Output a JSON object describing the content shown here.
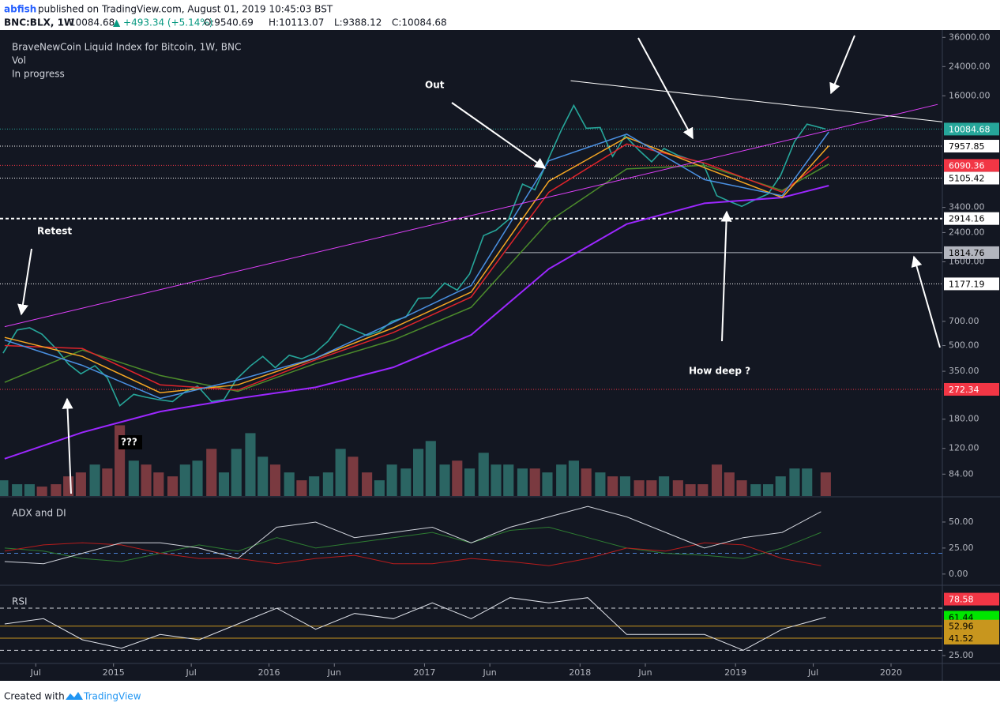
{
  "header": {
    "publisher": "abfish",
    "published": "published on TradingView.com, August 01, 2019 10:45:03 BST",
    "symbol": "BNC:BLX, 1W",
    "last": "10084.68",
    "change": "▲ +493.34 (+5.14%)",
    "ohlc": [
      "O:9540.69",
      "H:10113.07",
      "L:9388.12",
      "C:10084.68"
    ]
  },
  "annotations": [
    "Retest",
    "Out",
    "How deep ?",
    "???"
  ],
  "footer": {
    "text": "Created with",
    "brand": "TradingView"
  },
  "chart_data": [
    {
      "type": "line",
      "title": "BraveNewCoin Liquid Index for Bitcoin, 1W, BNC",
      "subtitles": [
        "Vol",
        "In progress"
      ],
      "log_scale": true,
      "xlim": [
        2014.27,
        2020.33
      ],
      "ylim": [
        62,
        39000
      ],
      "xticks": [
        {
          "value": 2014.5,
          "label": "Jul"
        },
        {
          "value": 2015,
          "label": "2015"
        },
        {
          "value": 2015.5,
          "label": "Jul"
        },
        {
          "value": 2016,
          "label": "2016"
        },
        {
          "value": 2016.42,
          "label": "Jun"
        },
        {
          "value": 2017,
          "label": "2017"
        },
        {
          "value": 2017.42,
          "label": "Jun"
        },
        {
          "value": 2018,
          "label": "2018"
        },
        {
          "value": 2018.42,
          "label": "Jun"
        },
        {
          "value": 2019,
          "label": "2019"
        },
        {
          "value": 2019.5,
          "label": "Jul"
        },
        {
          "value": 2020,
          "label": "2020"
        }
      ],
      "yticks": [
        {
          "value": 36000,
          "label": "36000.00"
        },
        {
          "value": 24000,
          "label": "24000.00"
        },
        {
          "value": 16000,
          "label": "16000.00"
        },
        {
          "value": 3400,
          "label": "3400.00"
        },
        {
          "value": 2400,
          "label": "2400.00"
        },
        {
          "value": 1600,
          "label": "1600.00"
        },
        {
          "value": 700,
          "label": "700.00"
        },
        {
          "value": 500,
          "label": "500.00"
        },
        {
          "value": 350,
          "label": "350.00"
        },
        {
          "value": 180,
          "label": "180.00"
        },
        {
          "value": 120,
          "label": "120.00"
        },
        {
          "value": 84,
          "label": "84.00"
        }
      ],
      "x": [
        2014.29,
        2014.38,
        2014.46,
        2014.54,
        2014.63,
        2014.71,
        2014.79,
        2014.88,
        2014.96,
        2015.04,
        2015.13,
        2015.21,
        2015.29,
        2015.38,
        2015.46,
        2015.54,
        2015.63,
        2015.71,
        2015.79,
        2015.88,
        2015.96,
        2016.04,
        2016.13,
        2016.21,
        2016.29,
        2016.38,
        2016.46,
        2016.54,
        2016.63,
        2016.71,
        2016.79,
        2016.88,
        2016.96,
        2017.04,
        2017.13,
        2017.21,
        2017.29,
        2017.38,
        2017.46,
        2017.54,
        2017.63,
        2017.71,
        2017.79,
        2017.88,
        2017.96,
        2018.04,
        2018.13,
        2018.21,
        2018.29,
        2018.38,
        2018.46,
        2018.54,
        2018.63,
        2018.71,
        2018.79,
        2018.88,
        2018.96,
        2019.04,
        2019.13,
        2019.21,
        2019.29,
        2019.38,
        2019.46,
        2019.58
      ],
      "volume": [
        20,
        15,
        15,
        12,
        15,
        25,
        30,
        40,
        35,
        90,
        45,
        40,
        30,
        25,
        40,
        45,
        60,
        30,
        60,
        80,
        50,
        40,
        30,
        20,
        25,
        30,
        60,
        50,
        30,
        20,
        40,
        35,
        60,
        70,
        40,
        45,
        35,
        55,
        40,
        40,
        35,
        35,
        30,
        40,
        45,
        35,
        30,
        25,
        25,
        20,
        20,
        25,
        20,
        15,
        15,
        40,
        30,
        20,
        15,
        15,
        25,
        35,
        35,
        30
      ],
      "vlim": [
        0,
        130
      ],
      "volume_colors": {
        "up": "#2b6563",
        "down": "#7a3a40"
      },
      "series": [
        {
          "color": "#26a69a",
          "width": 1.6,
          "values": [
            450,
            620,
            640,
            585,
            480,
            387,
            338,
            378,
            320,
            217,
            254,
            244,
            236,
            230,
            263,
            285,
            230,
            236,
            313,
            377,
            430,
            368,
            437,
            416,
            448,
            531,
            673,
            624,
            575,
            609,
            700,
            742,
            963,
            970,
            1190,
            1080,
            1350,
            2300,
            2480,
            2870,
            4700,
            4340,
            6450,
            9950,
            14000,
            10200,
            10300,
            6900,
            9200,
            7500,
            6400,
            7700,
            7000,
            6600,
            6300,
            4000,
            3700,
            3450,
            3800,
            4100,
            5300,
            8500,
            10800,
            10084.68
          ]
        },
        {
          "color": "#9c27ff",
          "width": 2,
          "x": [
            2014.3,
            2014.8,
            2015.3,
            2015.8,
            2016.3,
            2016.8,
            2017.3,
            2017.8,
            2018.3,
            2018.8,
            2019.3,
            2019.6
          ],
          "values": [
            104,
            150,
            200,
            240,
            280,
            370,
            580,
            1450,
            2700,
            3600,
            3900,
            4600
          ]
        },
        {
          "color": "#4c8c2b",
          "width": 1.5,
          "x": [
            2014.3,
            2014.8,
            2015.3,
            2015.8,
            2016.3,
            2016.8,
            2017.3,
            2017.8,
            2018.3,
            2018.8,
            2019.3,
            2019.6
          ],
          "values": [
            300,
            470,
            330,
            265,
            390,
            540,
            850,
            2800,
            5800,
            6100,
            4300,
            6200
          ]
        },
        {
          "color": "#e0242b",
          "width": 1.5,
          "x": [
            2014.3,
            2014.8,
            2015.3,
            2015.8,
            2016.3,
            2016.8,
            2017.3,
            2017.8,
            2018.3,
            2018.8,
            2019.3,
            2019.6
          ],
          "values": [
            500,
            480,
            290,
            270,
            410,
            600,
            980,
            4200,
            8200,
            6300,
            4200,
            6900
          ]
        },
        {
          "color": "#f5a623",
          "width": 1.5,
          "x": [
            2014.3,
            2014.8,
            2015.3,
            2015.8,
            2016.3,
            2016.8,
            2017.3,
            2017.8,
            2018.3,
            2018.8,
            2019.3,
            2019.6
          ],
          "values": [
            560,
            430,
            260,
            290,
            420,
            640,
            1050,
            4900,
            9000,
            5900,
            3900,
            8000
          ]
        },
        {
          "color": "#4a90e2",
          "width": 1.5,
          "x": [
            2014.3,
            2014.8,
            2015.3,
            2015.8,
            2016.3,
            2016.8,
            2017.3,
            2017.8,
            2018.3,
            2018.8,
            2019.3,
            2019.6
          ],
          "values": [
            540,
            380,
            240,
            310,
            420,
            690,
            1150,
            6500,
            9400,
            5000,
            4000,
            9700
          ]
        },
        {
          "color": "#e040fb",
          "width": 1,
          "x": [
            2014.3,
            2020.3
          ],
          "values": [
            650,
            14200
          ]
        },
        {
          "color": "#ffffff",
          "width": 1,
          "x": [
            2017.94,
            2020.33
          ],
          "values": [
            19700,
            11140
          ]
        }
      ],
      "levels": [
        {
          "value": 10084.68,
          "color": "#26a69a",
          "text_color": "#ffffff",
          "style": "dotted"
        },
        {
          "value": 7957.85,
          "color": "#ffffff",
          "text_color": "#000000",
          "style": "dotted"
        },
        {
          "value": 6090.36,
          "color": "#f23645",
          "text_color": "#ffffff",
          "style": "dotted"
        },
        {
          "value": 5105.42,
          "color": "#ffffff",
          "text_color": "#000000",
          "style": "dotted"
        },
        {
          "value": 2914.16,
          "color": "#ffffff",
          "text_color": "#000000",
          "style": "dashed"
        },
        {
          "value": 1814.76,
          "color": "#b2b5be",
          "text_color": "#000000",
          "style": "solid",
          "from": 2017.52
        },
        {
          "value": 1177.19,
          "color": "#ffffff",
          "text_color": "#000000",
          "style": "dotted"
        },
        {
          "value": 272.34,
          "color": "#f23645",
          "text_color": "#ffffff",
          "style": "dotted"
        }
      ]
    },
    {
      "type": "line",
      "title": "ADX and DI",
      "xlim": [
        2014.27,
        2020.33
      ],
      "ylim": [
        -10,
        73.5
      ],
      "yticks": [
        {
          "value": 50,
          "label": "50.00"
        },
        {
          "value": 25,
          "label": "25.00"
        },
        {
          "value": 0,
          "label": "0.00"
        }
      ],
      "bands": [
        20
      ],
      "band_color": "#4a7fd0",
      "x": [
        2014.3,
        2014.55,
        2014.8,
        2015.05,
        2015.3,
        2015.55,
        2015.8,
        2016.05,
        2016.3,
        2016.55,
        2016.8,
        2017.05,
        2017.3,
        2017.55,
        2017.8,
        2018.05,
        2018.3,
        2018.55,
        2018.8,
        2019.05,
        2019.3,
        2019.55
      ],
      "series": [
        {
          "color": "#2e7d32",
          "width": 1,
          "values": [
            25,
            22,
            15,
            12,
            20,
            28,
            22,
            35,
            25,
            30,
            35,
            40,
            30,
            42,
            45,
            35,
            25,
            20,
            18,
            15,
            25,
            40
          ]
        },
        {
          "color": "#b71c1c",
          "width": 1,
          "values": [
            22,
            28,
            30,
            28,
            20,
            15,
            15,
            10,
            15,
            18,
            10,
            10,
            15,
            12,
            8,
            15,
            25,
            22,
            30,
            28,
            15,
            8
          ]
        },
        {
          "color": "#d1d4dc",
          "width": 1,
          "values": [
            12,
            10,
            20,
            30,
            30,
            25,
            15,
            45,
            50,
            35,
            40,
            45,
            30,
            45,
            55,
            65,
            55,
            40,
            25,
            35,
            40,
            60
          ]
        }
      ]
    },
    {
      "type": "line",
      "title": "RSI",
      "xlim": [
        2014.27,
        2020.33
      ],
      "ylim": [
        19,
        91
      ],
      "yticks": [
        {
          "value": 25,
          "label": "25.00"
        }
      ],
      "bands": [
        70,
        30
      ],
      "band_color": "#d1d4dc",
      "x": [
        2014.3,
        2014.55,
        2014.8,
        2015.05,
        2015.3,
        2015.55,
        2015.8,
        2016.05,
        2016.3,
        2016.55,
        2016.8,
        2017.05,
        2017.3,
        2017.55,
        2017.8,
        2018.05,
        2018.3,
        2018.55,
        2018.8,
        2019.05,
        2019.3,
        2019.58
      ],
      "series": [
        {
          "color": "#e0e3eb",
          "width": 1,
          "values": [
            55,
            60,
            40,
            32,
            45,
            40,
            55,
            70,
            50,
            65,
            60,
            75,
            60,
            80,
            75,
            80,
            45,
            45,
            45,
            30,
            50,
            61.44
          ]
        }
      ],
      "levels": [
        {
          "value": 78.58,
          "color": "#f23645",
          "text_color": "#ffffff"
        },
        {
          "value": 61.44,
          "color": "#00e600",
          "text_color": "#000000"
        },
        {
          "value": 52.96,
          "color": "#c8961e",
          "text_color": "#000000",
          "style": "solid"
        },
        {
          "value": 41.52,
          "color": "#c8961e",
          "text_color": "#000000",
          "style": "solid"
        }
      ]
    }
  ]
}
